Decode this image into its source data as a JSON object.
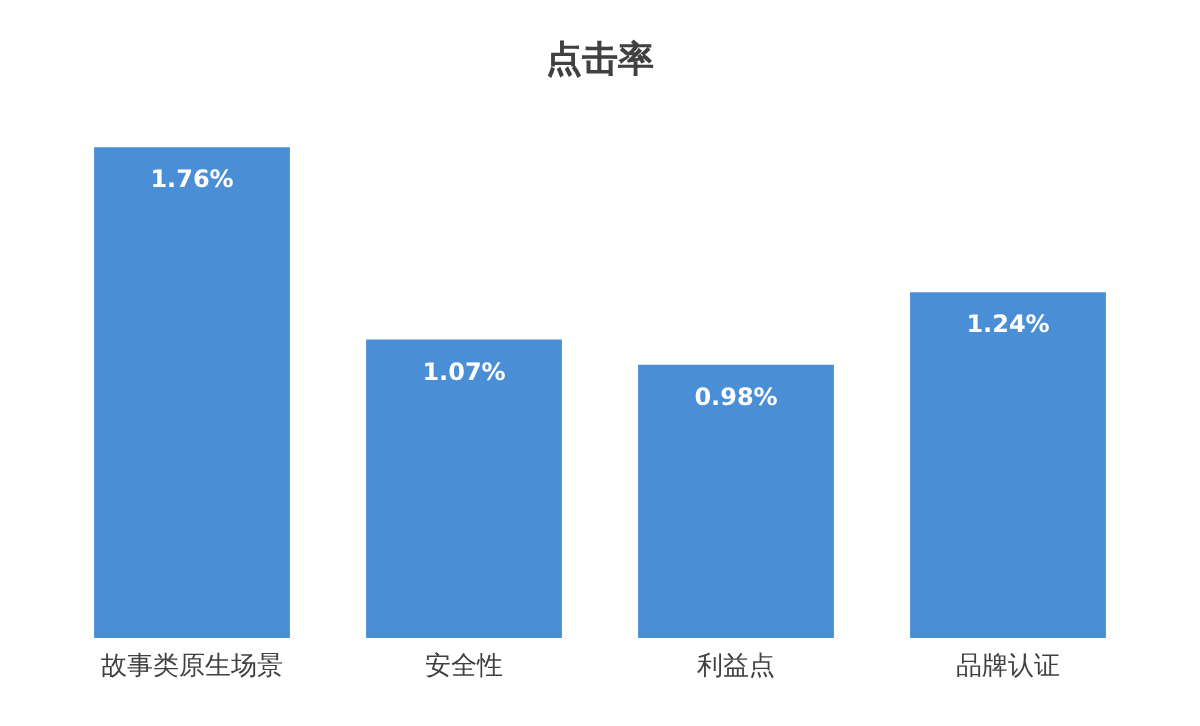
{
  "chart_data": {
    "type": "bar",
    "title": "点击率",
    "categories": [
      "故事类原生场景",
      "安全性",
      "利益点",
      "品牌认证"
    ],
    "values": [
      1.76,
      1.07,
      0.98,
      1.24
    ],
    "value_labels": [
      "1.76%",
      "1.07%",
      "0.98%",
      "1.24%"
    ],
    "color": "#4a8fd6"
  }
}
